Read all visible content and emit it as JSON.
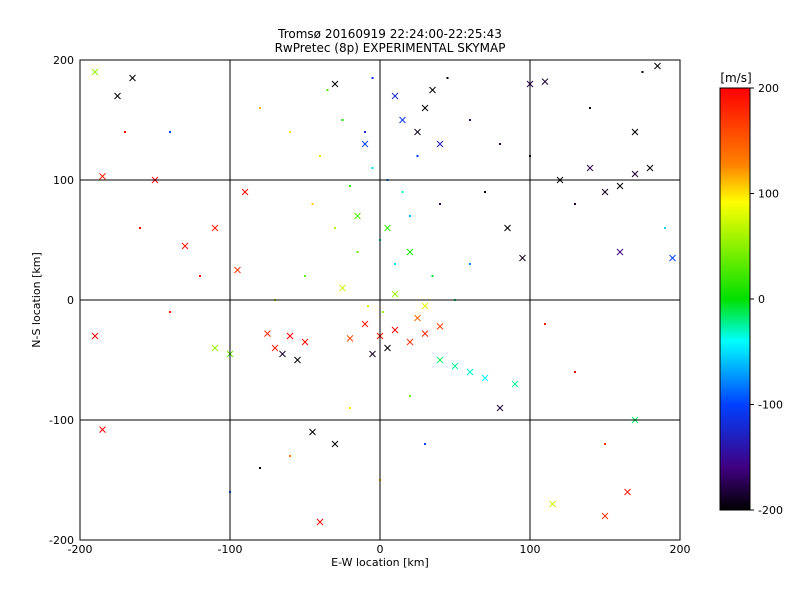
{
  "chart_data": {
    "type": "scatter",
    "title": "Tromsø 20160919 22:24:00-22:25:43",
    "subtitle": "RwPretec (8p) EXPERIMENTAL SKYMAP",
    "xlabel": "E-W location [km]",
    "ylabel": "N-S location [km]",
    "xlim": [
      -200,
      200
    ],
    "ylim": [
      -200,
      200
    ],
    "xticks": [
      "-200",
      "-100",
      "0",
      "100",
      "200"
    ],
    "yticks": [
      "-200",
      "-100",
      "0",
      "100",
      "200"
    ],
    "grid": true,
    "colorbar": {
      "label": "[m/s]",
      "range": [
        -200,
        200
      ],
      "ticks": [
        "200",
        "100",
        "0",
        "-100",
        "-200"
      ]
    },
    "marker_note": "small dots and x markers, colored by velocity",
    "points": [
      {
        "x": 0,
        "y": -30,
        "v": 190,
        "m": "x"
      },
      {
        "x": 10,
        "y": -25,
        "v": 200,
        "m": "x"
      },
      {
        "x": 20,
        "y": -35,
        "v": 180,
        "m": "x"
      },
      {
        "x": -10,
        "y": -20,
        "v": 195,
        "m": "x"
      },
      {
        "x": 30,
        "y": -28,
        "v": 185,
        "m": "x"
      },
      {
        "x": -20,
        "y": -32,
        "v": 170,
        "m": "x"
      },
      {
        "x": 40,
        "y": -22,
        "v": 175,
        "m": "x"
      },
      {
        "x": 5,
        "y": -40,
        "v": -200,
        "m": "x"
      },
      {
        "x": -5,
        "y": -45,
        "v": -190,
        "m": "x"
      },
      {
        "x": 25,
        "y": -15,
        "v": 160,
        "m": "x"
      },
      {
        "x": -60,
        "y": -30,
        "v": 200,
        "m": "x"
      },
      {
        "x": -70,
        "y": -40,
        "v": 190,
        "m": "x"
      },
      {
        "x": -55,
        "y": -50,
        "v": -200,
        "m": "x"
      },
      {
        "x": -75,
        "y": -28,
        "v": 185,
        "m": "x"
      },
      {
        "x": -50,
        "y": -35,
        "v": 200,
        "m": "x"
      },
      {
        "x": -65,
        "y": -45,
        "v": -180,
        "m": "x"
      },
      {
        "x": -110,
        "y": -40,
        "v": 60,
        "m": "x"
      },
      {
        "x": -100,
        "y": -45,
        "v": 40,
        "m": "x"
      },
      {
        "x": 50,
        "y": -55,
        "v": -30,
        "m": "x"
      },
      {
        "x": 60,
        "y": -60,
        "v": -40,
        "m": "x"
      },
      {
        "x": 40,
        "y": -50,
        "v": -20,
        "m": "x"
      },
      {
        "x": 70,
        "y": -65,
        "v": -50,
        "m": "x"
      },
      {
        "x": 15,
        "y": 150,
        "v": -110,
        "m": "x"
      },
      {
        "x": 25,
        "y": 140,
        "v": -190,
        "m": "x"
      },
      {
        "x": 30,
        "y": 160,
        "v": -200,
        "m": "x"
      },
      {
        "x": 10,
        "y": 170,
        "v": -120,
        "m": "x"
      },
      {
        "x": -10,
        "y": 130,
        "v": -100,
        "m": "x"
      },
      {
        "x": 40,
        "y": 130,
        "v": -130,
        "m": "x"
      },
      {
        "x": -30,
        "y": 180,
        "v": -200,
        "m": "x"
      },
      {
        "x": 35,
        "y": 175,
        "v": -200,
        "m": "x"
      },
      {
        "x": 120,
        "y": 100,
        "v": -200,
        "m": "x"
      },
      {
        "x": 140,
        "y": 110,
        "v": -170,
        "m": "x"
      },
      {
        "x": 160,
        "y": 95,
        "v": -200,
        "m": "x"
      },
      {
        "x": 170,
        "y": 105,
        "v": -180,
        "m": "x"
      },
      {
        "x": 150,
        "y": 90,
        "v": -190,
        "m": "x"
      },
      {
        "x": 180,
        "y": 110,
        "v": -200,
        "m": "x"
      },
      {
        "x": 100,
        "y": 180,
        "v": -170,
        "m": "x"
      },
      {
        "x": 110,
        "y": 182,
        "v": -180,
        "m": "x"
      },
      {
        "x": 170,
        "y": 140,
        "v": -200,
        "m": "x"
      },
      {
        "x": 185,
        "y": 195,
        "v": -200,
        "m": "x"
      },
      {
        "x": -190,
        "y": 190,
        "v": 60,
        "m": "x"
      },
      {
        "x": -175,
        "y": 170,
        "v": -200,
        "m": "x"
      },
      {
        "x": -165,
        "y": 185,
        "v": -200,
        "m": "x"
      },
      {
        "x": -185,
        "y": 103,
        "v": 190,
        "m": "x"
      },
      {
        "x": -150,
        "y": 100,
        "v": 200,
        "m": "x"
      },
      {
        "x": -190,
        "y": -30,
        "v": 200,
        "m": "x"
      },
      {
        "x": -185,
        "y": -108,
        "v": 200,
        "m": "x"
      },
      {
        "x": -45,
        "y": -110,
        "v": -200,
        "m": "x"
      },
      {
        "x": -30,
        "y": -120,
        "v": -200,
        "m": "x"
      },
      {
        "x": -40,
        "y": -185,
        "v": 200,
        "m": "x"
      },
      {
        "x": 115,
        "y": -170,
        "v": 80,
        "m": "x"
      },
      {
        "x": 165,
        "y": -160,
        "v": 190,
        "m": "x"
      },
      {
        "x": 170,
        "y": -100,
        "v": -20,
        "m": "x"
      },
      {
        "x": 150,
        "y": -180,
        "v": 180,
        "m": "x"
      },
      {
        "x": 5,
        "y": 60,
        "v": 20,
        "m": "x"
      },
      {
        "x": -15,
        "y": 70,
        "v": 30,
        "m": "x"
      },
      {
        "x": 20,
        "y": 40,
        "v": 10,
        "m": "x"
      },
      {
        "x": -25,
        "y": 10,
        "v": 80,
        "m": "x"
      },
      {
        "x": 10,
        "y": 5,
        "v": 60,
        "m": "x"
      },
      {
        "x": 30,
        "y": -5,
        "v": 90,
        "m": "x"
      },
      {
        "x": -90,
        "y": 90,
        "v": 200,
        "m": "x"
      },
      {
        "x": -110,
        "y": 60,
        "v": 190,
        "m": "x"
      },
      {
        "x": -130,
        "y": 45,
        "v": 195,
        "m": "x"
      },
      {
        "x": -95,
        "y": 25,
        "v": 180,
        "m": "x"
      },
      {
        "x": 90,
        "y": -70,
        "v": -30,
        "m": "x"
      },
      {
        "x": 80,
        "y": -90,
        "v": -180,
        "m": "x"
      },
      {
        "x": 85,
        "y": 60,
        "v": -200,
        "m": "x"
      },
      {
        "x": 95,
        "y": 35,
        "v": -190,
        "m": "x"
      },
      {
        "x": 160,
        "y": 40,
        "v": -150,
        "m": "x"
      },
      {
        "x": 195,
        "y": 35,
        "v": -100,
        "m": "x"
      },
      {
        "x": 5,
        "y": 100,
        "v": -80,
        "m": "d"
      },
      {
        "x": -5,
        "y": 110,
        "v": -60,
        "m": "d"
      },
      {
        "x": 15,
        "y": 90,
        "v": -40,
        "m": "d"
      },
      {
        "x": -20,
        "y": 95,
        "v": 20,
        "m": "d"
      },
      {
        "x": 25,
        "y": 120,
        "v": -100,
        "m": "d"
      },
      {
        "x": -10,
        "y": 140,
        "v": -120,
        "m": "d"
      },
      {
        "x": 0,
        "y": 50,
        "v": -30,
        "m": "d"
      },
      {
        "x": 10,
        "y": 30,
        "v": -50,
        "m": "d"
      },
      {
        "x": -15,
        "y": 40,
        "v": 40,
        "m": "d"
      },
      {
        "x": 20,
        "y": 70,
        "v": -70,
        "m": "d"
      },
      {
        "x": -30,
        "y": 60,
        "v": 70,
        "m": "d"
      },
      {
        "x": 35,
        "y": 20,
        "v": -10,
        "m": "d"
      },
      {
        "x": -40,
        "y": 120,
        "v": 90,
        "m": "d"
      },
      {
        "x": -60,
        "y": 140,
        "v": 110,
        "m": "d"
      },
      {
        "x": -80,
        "y": 160,
        "v": 130,
        "m": "d"
      },
      {
        "x": 60,
        "y": 150,
        "v": -150,
        "m": "d"
      },
      {
        "x": 80,
        "y": 130,
        "v": -170,
        "m": "d"
      },
      {
        "x": 100,
        "y": 120,
        "v": -200,
        "m": "d"
      },
      {
        "x": 130,
        "y": 80,
        "v": -180,
        "m": "d"
      },
      {
        "x": 70,
        "y": 90,
        "v": -190,
        "m": "d"
      },
      {
        "x": -120,
        "y": 20,
        "v": 200,
        "m": "d"
      },
      {
        "x": -140,
        "y": -10,
        "v": 190,
        "m": "d"
      },
      {
        "x": -160,
        "y": 60,
        "v": 200,
        "m": "d"
      },
      {
        "x": -70,
        "y": 0,
        "v": 60,
        "m": "d"
      },
      {
        "x": -50,
        "y": 20,
        "v": 40,
        "m": "d"
      },
      {
        "x": 50,
        "y": 0,
        "v": -20,
        "m": "d"
      },
      {
        "x": 60,
        "y": 30,
        "v": -80,
        "m": "d"
      },
      {
        "x": 110,
        "y": -20,
        "v": 190,
        "m": "d"
      },
      {
        "x": 130,
        "y": -60,
        "v": 200,
        "m": "d"
      },
      {
        "x": 150,
        "y": -120,
        "v": 180,
        "m": "d"
      },
      {
        "x": -80,
        "y": -140,
        "v": -200,
        "m": "d"
      },
      {
        "x": -60,
        "y": -130,
        "v": 150,
        "m": "d"
      },
      {
        "x": -20,
        "y": -90,
        "v": 100,
        "m": "d"
      },
      {
        "x": 20,
        "y": -80,
        "v": 50,
        "m": "d"
      },
      {
        "x": 0,
        "y": -150,
        "v": 120,
        "m": "d"
      },
      {
        "x": 30,
        "y": -120,
        "v": -100,
        "m": "d"
      },
      {
        "x": -100,
        "y": -160,
        "v": -90,
        "m": "d"
      },
      {
        "x": 175,
        "y": 190,
        "v": -200,
        "m": "d"
      },
      {
        "x": -140,
        "y": 140,
        "v": -100,
        "m": "d"
      },
      {
        "x": -170,
        "y": 140,
        "v": 200,
        "m": "d"
      },
      {
        "x": 190,
        "y": 60,
        "v": -60,
        "m": "d"
      },
      {
        "x": 140,
        "y": 160,
        "v": -190,
        "m": "d"
      },
      {
        "x": -35,
        "y": 175,
        "v": 30,
        "m": "d"
      },
      {
        "x": 45,
        "y": 185,
        "v": -200,
        "m": "d"
      },
      {
        "x": -5,
        "y": 185,
        "v": -110,
        "m": "d"
      },
      {
        "x": -25,
        "y": 150,
        "v": 10,
        "m": "d"
      },
      {
        "x": 40,
        "y": 80,
        "v": -160,
        "m": "d"
      },
      {
        "x": -45,
        "y": 80,
        "v": 120,
        "m": "d"
      },
      {
        "x": 2,
        "y": -10,
        "v": 60,
        "m": "d"
      },
      {
        "x": -8,
        "y": -5,
        "v": 80,
        "m": "d"
      }
    ]
  }
}
